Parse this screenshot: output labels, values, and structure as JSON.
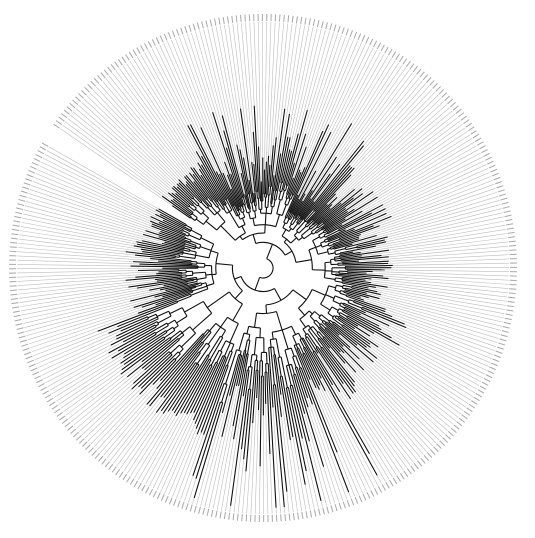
{
  "figure": {
    "kind": "circular phylogenetic tree",
    "background": "#ffffff",
    "branch_color": "#111111",
    "leader_color": "#bdbdbd",
    "label_color": "#9a9a9a",
    "tip_labels_legible": false,
    "visible_text": []
  }
}
